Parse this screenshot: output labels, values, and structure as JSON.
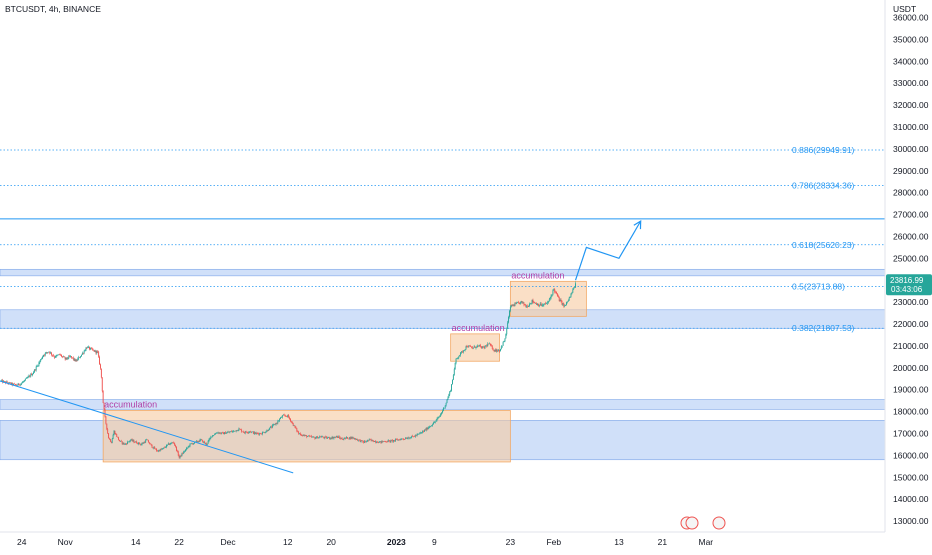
{
  "header": {
    "title": "BTCUSDT, 4h, BINANCE"
  },
  "currency": "USDT",
  "price_tag": {
    "price": "23816.99",
    "countdown": "03:43:06",
    "color": "#26a69a"
  },
  "colors": {
    "up": "#26a69a",
    "down": "#ef5350",
    "fib": "#2196f3",
    "zone_blue": "#bcd3f7",
    "zone_orange": "#f7c9a0",
    "accumulation_text": "#b13fa6"
  },
  "chart_data": {
    "type": "candlestick",
    "title": "BTCUSDT, 4h, BINANCE",
    "ylabel": "USDT",
    "ylim": [
      12500,
      36800
    ],
    "x_range": [
      -4,
      159
    ],
    "grid": false,
    "y_ticks": [
      13000,
      14000,
      15000,
      16000,
      17000,
      18000,
      19000,
      20000,
      21000,
      22000,
      23000,
      24000,
      25000,
      26000,
      27000,
      28000,
      29000,
      30000,
      31000,
      32000,
      33000,
      34000,
      35000,
      36000
    ],
    "y_tick_labels": [
      "13000.00",
      "14000.00",
      "15000.00",
      "16000.00",
      "17000.00",
      "18000.00",
      "19000.00",
      "20000.00",
      "21000.00",
      "22000.00",
      "23000.00",
      "24000.00",
      "25000.00",
      "26000.00",
      "27000.00",
      "28000.00",
      "29000.00",
      "30000.00",
      "31000.00",
      "32000.00",
      "33000.00",
      "34000.00",
      "35000.00",
      "36000.00"
    ],
    "x_ticks": [
      {
        "day": 0,
        "label": "24"
      },
      {
        "day": 8,
        "label": "Nov"
      },
      {
        "day": 21,
        "label": "14"
      },
      {
        "day": 29,
        "label": "22"
      },
      {
        "day": 38,
        "label": "Dec"
      },
      {
        "day": 49,
        "label": "12"
      },
      {
        "day": 57,
        "label": "20"
      },
      {
        "day": 69,
        "label": "2023"
      },
      {
        "day": 76,
        "label": "9"
      },
      {
        "day": 90,
        "label": "23"
      },
      {
        "day": 98,
        "label": "Feb"
      },
      {
        "day": 110,
        "label": "13"
      },
      {
        "day": 118,
        "label": "21"
      },
      {
        "day": 126,
        "label": "Mar"
      }
    ],
    "price_keypoints": [
      [
        -4,
        19400
      ],
      [
        -1,
        19200
      ],
      [
        0,
        19300
      ],
      [
        2,
        19750
      ],
      [
        3,
        20150
      ],
      [
        4,
        20600
      ],
      [
        5,
        20750
      ],
      [
        6,
        20500
      ],
      [
        7,
        20600
      ],
      [
        8,
        20400
      ],
      [
        9,
        20500
      ],
      [
        10,
        20300
      ],
      [
        11,
        20600
      ],
      [
        12,
        20950
      ],
      [
        13,
        20800
      ],
      [
        14,
        20700
      ],
      [
        14.6,
        19800
      ],
      [
        15,
        18400
      ],
      [
        15.4,
        17600
      ],
      [
        16,
        16800
      ],
      [
        16.5,
        16600
      ],
      [
        17,
        17100
      ],
      [
        18,
        16650
      ],
      [
        19,
        16500
      ],
      [
        20,
        16700
      ],
      [
        21,
        16600
      ],
      [
        22,
        16500
      ],
      [
        23,
        16700
      ],
      [
        24,
        16400
      ],
      [
        25,
        16200
      ],
      [
        26,
        16300
      ],
      [
        27,
        16500
      ],
      [
        28,
        16600
      ],
      [
        29,
        15900
      ],
      [
        30,
        16200
      ],
      [
        31,
        16500
      ],
      [
        32,
        16600
      ],
      [
        33,
        16700
      ],
      [
        34,
        16500
      ],
      [
        35,
        16900
      ],
      [
        36,
        17050
      ],
      [
        37,
        17000
      ],
      [
        38,
        17050
      ],
      [
        39,
        17100
      ],
      [
        40,
        17200
      ],
      [
        41,
        17050
      ],
      [
        42,
        17100
      ],
      [
        43,
        17000
      ],
      [
        44,
        17000
      ],
      [
        45,
        17100
      ],
      [
        46,
        17300
      ],
      [
        47,
        17500
      ],
      [
        48,
        17800
      ],
      [
        49,
        17800
      ],
      [
        50,
        17400
      ],
      [
        51,
        17000
      ],
      [
        52,
        16900
      ],
      [
        53,
        16850
      ],
      [
        54,
        16800
      ],
      [
        55,
        16850
      ],
      [
        56,
        16800
      ],
      [
        57,
        16800
      ],
      [
        58,
        16850
      ],
      [
        59,
        16750
      ],
      [
        60,
        16800
      ],
      [
        61,
        16800
      ],
      [
        62,
        16700
      ],
      [
        63,
        16600
      ],
      [
        64,
        16700
      ],
      [
        65,
        16650
      ],
      [
        66,
        16600
      ],
      [
        67,
        16650
      ],
      [
        68,
        16650
      ],
      [
        69,
        16700
      ],
      [
        70,
        16750
      ],
      [
        71,
        16800
      ],
      [
        72,
        16850
      ],
      [
        73,
        16950
      ],
      [
        74,
        17100
      ],
      [
        75,
        17300
      ],
      [
        76,
        17500
      ],
      [
        77,
        17800
      ],
      [
        78,
        18300
      ],
      [
        79,
        19000
      ],
      [
        80,
        20400
      ],
      [
        81,
        20700
      ],
      [
        82,
        21000
      ],
      [
        83,
        20900
      ],
      [
        84,
        21000
      ],
      [
        85,
        20900
      ],
      [
        86,
        21100
      ],
      [
        87,
        20800
      ],
      [
        88,
        20800
      ],
      [
        89,
        21300
      ],
      [
        90,
        22800
      ],
      [
        91,
        22900
      ],
      [
        92,
        23000
      ],
      [
        93,
        22800
      ],
      [
        94,
        23050
      ],
      [
        95,
        22900
      ],
      [
        96,
        22850
      ],
      [
        97,
        23000
      ],
      [
        98,
        23600
      ],
      [
        99,
        23100
      ],
      [
        100,
        22800
      ],
      [
        101,
        23250
      ],
      [
        102,
        23816.99
      ]
    ],
    "fib_levels": [
      {
        "ratio": 0.382,
        "price": 21807.53,
        "label": "0.382(21807.53)"
      },
      {
        "ratio": 0.5,
        "price": 23713.88,
        "label": "0.5(23713.88)"
      },
      {
        "ratio": 0.618,
        "price": 25620.23,
        "label": "0.618(25620.23)"
      },
      {
        "ratio": 0.786,
        "price": 28334.36,
        "label": "0.786(28334.36)"
      },
      {
        "ratio": 0.886,
        "price": 29949.91,
        "label": "0.886(29949.91)"
      }
    ],
    "resistance_line": 26800,
    "blue_zones": [
      {
        "from": 24200,
        "to": 24500
      },
      {
        "from": 21800,
        "to": 22650
      },
      {
        "from": 18100,
        "to": 18550
      },
      {
        "from": 15800,
        "to": 17600
      }
    ],
    "accumulation_zones": [
      {
        "label": "accumulation",
        "x": [
          15,
          90
        ],
        "y": [
          15700,
          18050
        ]
      },
      {
        "label": "accumulation",
        "x": [
          79,
          88
        ],
        "y": [
          20300,
          21550
        ]
      },
      {
        "label": "accumulation",
        "x": [
          90,
          104
        ],
        "y": [
          22350,
          23950
        ]
      }
    ],
    "trend_line": [
      [
        -4,
        19400
      ],
      [
        50,
        15200
      ]
    ],
    "projection_path": [
      [
        102,
        24000
      ],
      [
        104,
        25500
      ],
      [
        110,
        25000
      ],
      [
        114,
        26700
      ]
    ]
  }
}
